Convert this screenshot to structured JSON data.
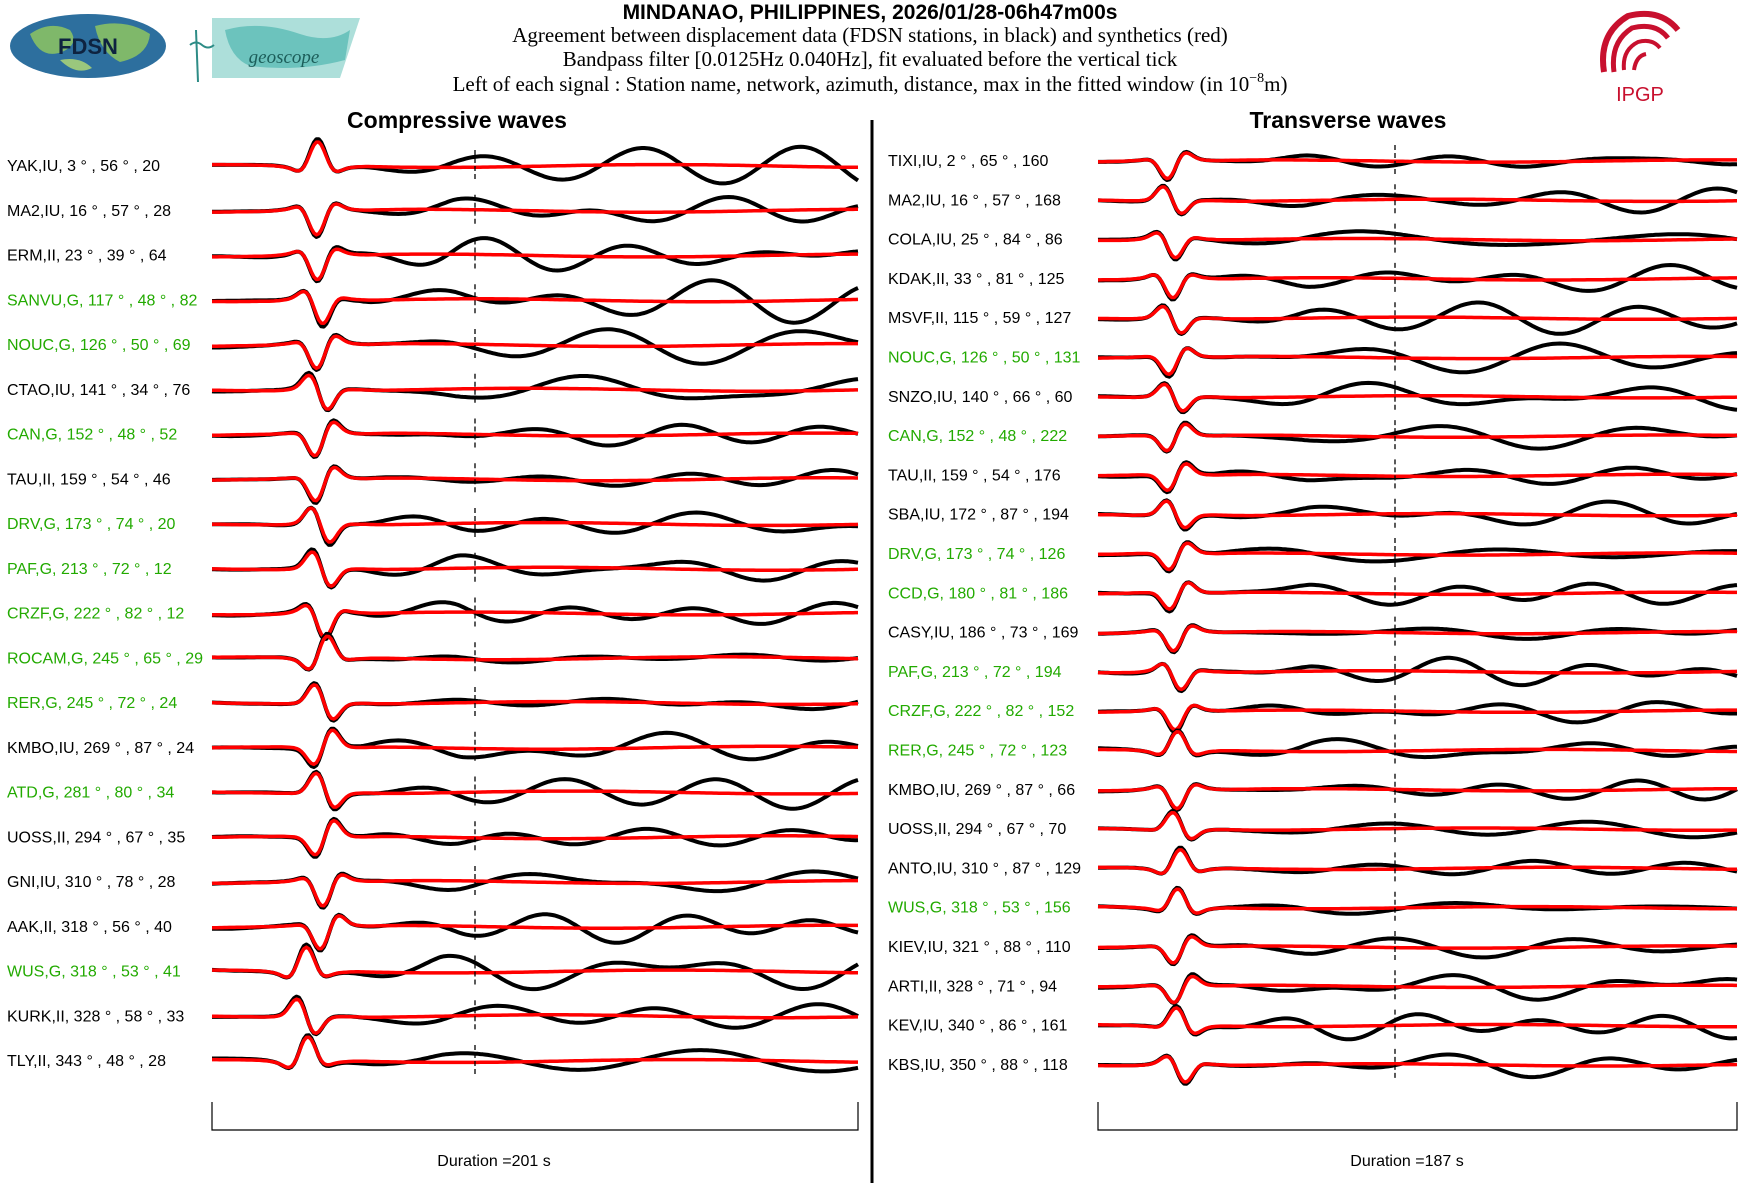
{
  "header": {
    "title": "MINDANAO, PHILIPPINES, 2026/01/28-06h47m00s",
    "line1": "Agreement between displacement data (FDSN stations, in black) and synthetics (red)",
    "line2": "Bandpass filter [0.0125Hz 0.040Hz], fit evaluated before the vertical tick",
    "line3": "Left of each signal : Station name, network, azimuth, distance, max in the fitted window (in 10",
    "line3_sup": "−8",
    "line3_tail": "m)"
  },
  "logos": {
    "fdsn_text": "FDSN",
    "geoscope_text": "geoscope",
    "ipgp_text": "IPGP"
  },
  "colors": {
    "data": "#000000",
    "synthetic": "#ff0000",
    "green_station": "#22aa00",
    "ipgp": "#c8102e",
    "logo_teal": "#6cc3bd"
  },
  "chart_data": [
    {
      "type": "line",
      "title": "Compressive waves",
      "duration_label": "Duration =201 s",
      "duration_s": 201,
      "series": [
        {
          "name": "Data (black)"
        },
        {
          "name": "Synthetics (red)"
        }
      ],
      "stations": [
        {
          "label": "YAK,IU, 3 ° , 56 ° , 20",
          "station": "YAK",
          "network": "IU",
          "azimuth": 3,
          "distance": 56,
          "max": 20,
          "green": false
        },
        {
          "label": "MA2,IU, 16 ° , 57 ° , 28",
          "station": "MA2",
          "network": "IU",
          "azimuth": 16,
          "distance": 57,
          "max": 28,
          "green": false
        },
        {
          "label": "ERM,II, 23 ° , 39 ° , 64",
          "station": "ERM",
          "network": "II",
          "azimuth": 23,
          "distance": 39,
          "max": 64,
          "green": false
        },
        {
          "label": "SANVU,G, 117 ° , 48 ° , 82",
          "station": "SANVU",
          "network": "G",
          "azimuth": 117,
          "distance": 48,
          "max": 82,
          "green": true
        },
        {
          "label": "NOUC,G, 126 ° , 50 ° , 69",
          "station": "NOUC",
          "network": "G",
          "azimuth": 126,
          "distance": 50,
          "max": 69,
          "green": true
        },
        {
          "label": "CTAO,IU, 141 ° , 34 ° , 76",
          "station": "CTAO",
          "network": "IU",
          "azimuth": 141,
          "distance": 34,
          "max": 76,
          "green": false
        },
        {
          "label": "CAN,G, 152 ° , 48 ° , 52",
          "station": "CAN",
          "network": "G",
          "azimuth": 152,
          "distance": 48,
          "max": 52,
          "green": true
        },
        {
          "label": "TAU,II, 159 ° , 54 ° , 46",
          "station": "TAU",
          "network": "II",
          "azimuth": 159,
          "distance": 54,
          "max": 46,
          "green": false
        },
        {
          "label": "DRV,G, 173 ° , 74 ° , 20",
          "station": "DRV",
          "network": "G",
          "azimuth": 173,
          "distance": 74,
          "max": 20,
          "green": true
        },
        {
          "label": "PAF,G, 213 ° , 72 ° , 12",
          "station": "PAF",
          "network": "G",
          "azimuth": 213,
          "distance": 72,
          "max": 12,
          "green": true
        },
        {
          "label": "CRZF,G, 222 ° , 82 ° , 12",
          "station": "CRZF",
          "network": "G",
          "azimuth": 222,
          "distance": 82,
          "max": 12,
          "green": true
        },
        {
          "label": "ROCAM,G, 245 ° , 65 ° , 29",
          "station": "ROCAM",
          "network": "G",
          "azimuth": 245,
          "distance": 65,
          "max": 29,
          "green": true
        },
        {
          "label": "RER,G, 245 ° , 72 ° , 24",
          "station": "RER",
          "network": "G",
          "azimuth": 245,
          "distance": 72,
          "max": 24,
          "green": true
        },
        {
          "label": "KMBO,IU, 269 ° , 87 ° , 24",
          "station": "KMBO",
          "network": "IU",
          "azimuth": 269,
          "distance": 87,
          "max": 24,
          "green": false
        },
        {
          "label": "ATD,G, 281 ° , 80 ° , 34",
          "station": "ATD",
          "network": "G",
          "azimuth": 281,
          "distance": 80,
          "max": 34,
          "green": true
        },
        {
          "label": "UOSS,II, 294 ° , 67 ° , 35",
          "station": "UOSS",
          "network": "II",
          "azimuth": 294,
          "distance": 67,
          "max": 35,
          "green": false
        },
        {
          "label": "GNI,IU, 310 ° , 78 ° , 28",
          "station": "GNI",
          "network": "IU",
          "azimuth": 310,
          "distance": 78,
          "max": 28,
          "green": false
        },
        {
          "label": "AAK,II, 318 ° , 56 ° , 40",
          "station": "AAK",
          "network": "II",
          "azimuth": 318,
          "distance": 56,
          "max": 40,
          "green": false
        },
        {
          "label": "WUS,G, 318 ° , 53 ° , 41",
          "station": "WUS",
          "network": "G",
          "azimuth": 318,
          "distance": 53,
          "max": 41,
          "green": true
        },
        {
          "label": "KURK,II, 328 ° , 58 ° , 33",
          "station": "KURK",
          "network": "II",
          "azimuth": 328,
          "distance": 58,
          "max": 33,
          "green": false
        },
        {
          "label": "TLY,II, 343 ° , 48 ° , 28",
          "station": "TLY",
          "network": "II",
          "azimuth": 343,
          "distance": 48,
          "max": 28,
          "green": false
        }
      ]
    },
    {
      "type": "line",
      "title": "Transverse waves",
      "duration_label": "Duration =187 s",
      "duration_s": 187,
      "series": [
        {
          "name": "Data (black)"
        },
        {
          "name": "Synthetics (red)"
        }
      ],
      "stations": [
        {
          "label": "TIXI,IU, 2 ° , 65 ° , 160",
          "station": "TIXI",
          "network": "IU",
          "azimuth": 2,
          "distance": 65,
          "max": 160,
          "green": false
        },
        {
          "label": "MA2,IU, 16 ° , 57 ° , 168",
          "station": "MA2",
          "network": "IU",
          "azimuth": 16,
          "distance": 57,
          "max": 168,
          "green": false
        },
        {
          "label": "COLA,IU, 25 ° , 84 ° , 86",
          "station": "COLA",
          "network": "IU",
          "azimuth": 25,
          "distance": 84,
          "max": 86,
          "green": false
        },
        {
          "label": "KDAK,II, 33 ° , 81 ° , 125",
          "station": "KDAK",
          "network": "II",
          "azimuth": 33,
          "distance": 81,
          "max": 125,
          "green": false
        },
        {
          "label": "MSVF,II, 115 ° , 59 ° , 127",
          "station": "MSVF",
          "network": "II",
          "azimuth": 115,
          "distance": 59,
          "max": 127,
          "green": false
        },
        {
          "label": "NOUC,G, 126 ° , 50 ° , 131",
          "station": "NOUC",
          "network": "G",
          "azimuth": 126,
          "distance": 50,
          "max": 131,
          "green": true
        },
        {
          "label": "SNZO,IU, 140 ° , 66 ° , 60",
          "station": "SNZO",
          "network": "IU",
          "azimuth": 140,
          "distance": 66,
          "max": 60,
          "green": false
        },
        {
          "label": "CAN,G, 152 ° , 48 ° , 222",
          "station": "CAN",
          "network": "G",
          "azimuth": 152,
          "distance": 48,
          "max": 222,
          "green": true
        },
        {
          "label": "TAU,II, 159 ° , 54 ° , 176",
          "station": "TAU",
          "network": "II",
          "azimuth": 159,
          "distance": 54,
          "max": 176,
          "green": false
        },
        {
          "label": "SBA,IU, 172 ° , 87 ° , 194",
          "station": "SBA",
          "network": "IU",
          "azimuth": 172,
          "distance": 87,
          "max": 194,
          "green": false
        },
        {
          "label": "DRV,G, 173 ° , 74 ° , 126",
          "station": "DRV",
          "network": "G",
          "azimuth": 173,
          "distance": 74,
          "max": 126,
          "green": true
        },
        {
          "label": "CCD,G, 180 ° , 81 ° , 186",
          "station": "CCD",
          "network": "G",
          "azimuth": 180,
          "distance": 81,
          "max": 186,
          "green": true
        },
        {
          "label": "CASY,IU, 186 ° , 73 ° , 169",
          "station": "CASY",
          "network": "IU",
          "azimuth": 186,
          "distance": 73,
          "max": 169,
          "green": false
        },
        {
          "label": "PAF,G, 213 ° , 72 ° , 194",
          "station": "PAF",
          "network": "G",
          "azimuth": 213,
          "distance": 72,
          "max": 194,
          "green": true
        },
        {
          "label": "CRZF,G, 222 ° , 82 ° , 152",
          "station": "CRZF",
          "network": "G",
          "azimuth": 222,
          "distance": 82,
          "max": 152,
          "green": true
        },
        {
          "label": "RER,G, 245 ° , 72 ° , 123",
          "station": "RER",
          "network": "G",
          "azimuth": 245,
          "distance": 72,
          "max": 123,
          "green": true
        },
        {
          "label": "KMBO,IU, 269 ° , 87 ° , 66",
          "station": "KMBO",
          "network": "IU",
          "azimuth": 269,
          "distance": 87,
          "max": 66,
          "green": false
        },
        {
          "label": "UOSS,II, 294 ° , 67 ° , 70",
          "station": "UOSS",
          "network": "II",
          "azimuth": 294,
          "distance": 67,
          "max": 70,
          "green": false
        },
        {
          "label": "ANTO,IU, 310 ° , 87 ° , 129",
          "station": "ANTO",
          "network": "IU",
          "azimuth": 310,
          "distance": 87,
          "max": 129,
          "green": false
        },
        {
          "label": "WUS,G, 318 ° , 53 ° , 156",
          "station": "WUS",
          "network": "G",
          "azimuth": 318,
          "distance": 53,
          "max": 156,
          "green": true
        },
        {
          "label": "KIEV,IU, 321 ° , 88 ° , 110",
          "station": "KIEV",
          "network": "IU",
          "azimuth": 321,
          "distance": 88,
          "max": 110,
          "green": false
        },
        {
          "label": "ARTI,II, 328 ° , 71 ° , 94",
          "station": "ARTI",
          "network": "II",
          "azimuth": 328,
          "distance": 71,
          "max": 94,
          "green": false
        },
        {
          "label": "KEV,IU, 340 ° , 86 ° , 161",
          "station": "KEV",
          "network": "IU",
          "azimuth": 340,
          "distance": 86,
          "max": 161,
          "green": false
        },
        {
          "label": "KBS,IU, 350 ° , 88 ° , 118",
          "station": "KBS",
          "network": "IU",
          "azimuth": 350,
          "distance": 88,
          "max": 118,
          "green": false
        }
      ]
    }
  ]
}
